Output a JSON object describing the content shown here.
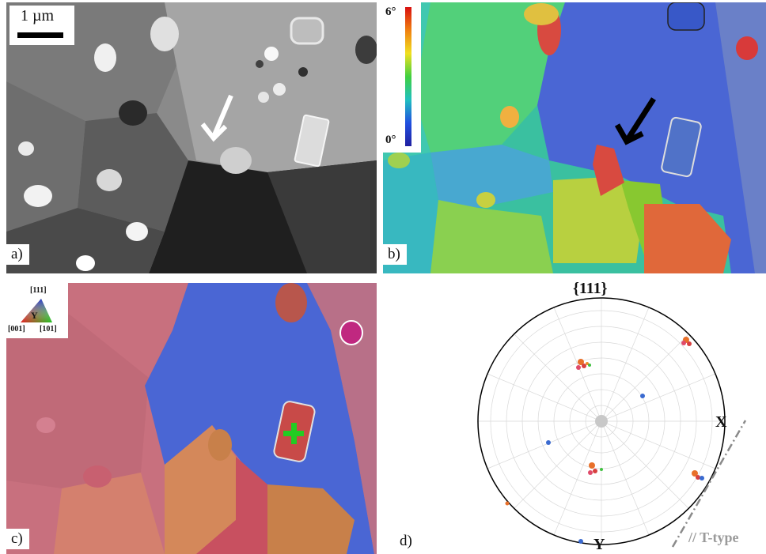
{
  "figure": {
    "panel_a": {
      "label": "a)",
      "scale_bar_text": "1 µm"
    },
    "panel_b": {
      "label": "b)",
      "colorbar_max": "6°",
      "colorbar_min": "0°"
    },
    "panel_c": {
      "label": "c)",
      "ipf_key": {
        "corner_top": "[111]",
        "corner_left": "[001]",
        "corner_right": "[101]",
        "axis": "Y"
      }
    },
    "panel_d": {
      "label": "d)",
      "title": "{111}",
      "axis_x": "X",
      "axis_y": "Y",
      "annotation": "// T-type"
    }
  },
  "colors": {
    "blue_grain": "#4a66d4",
    "red_grain": "#d24a4a",
    "ipf_pink": "#c8707e",
    "ipf_orange": "#c8804a",
    "marker_green": "#22cc22",
    "ttype_gray": "#9a9a9a"
  },
  "arrows": {
    "panel_a": "white arrow",
    "panel_b": "black arrow"
  },
  "markers": {
    "panel_c": "green cross"
  }
}
